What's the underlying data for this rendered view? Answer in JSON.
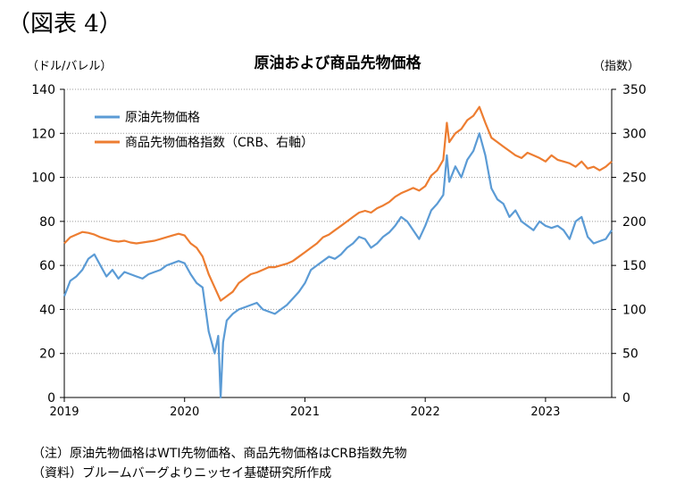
{
  "figure_label": "（図表 4）",
  "notes": [
    "（注）原油先物価格はWTI先物価格、商品先物価格はCRB指数先物",
    "（資料）ブルームバーグよりニッセイ基礎研究所作成"
  ],
  "chart_data": {
    "type": "line",
    "title": "原油および商品先物価格",
    "ylabel_left": "（ドル/バレル）",
    "ylabel_right": "（指数）",
    "ylim_left": [
      0,
      140
    ],
    "ylim_right": [
      0,
      350
    ],
    "yticks_left": [
      0,
      20,
      40,
      60,
      80,
      100,
      120,
      140
    ],
    "yticks_right": [
      0,
      50,
      100,
      150,
      200,
      250,
      300,
      350
    ],
    "xticks": [
      "2019",
      "2020",
      "2021",
      "2022",
      "2023"
    ],
    "xlim": [
      2019.0,
      2023.55
    ],
    "grid": "horizontal dotted",
    "legend_position": "top-left",
    "series": [
      {
        "name": "原油先物価格",
        "axis": "left",
        "color": "#5B9BD5",
        "x": [
          2019.0,
          2019.05,
          2019.1,
          2019.15,
          2019.2,
          2019.25,
          2019.3,
          2019.35,
          2019.4,
          2019.45,
          2019.5,
          2019.55,
          2019.6,
          2019.65,
          2019.7,
          2019.75,
          2019.8,
          2019.85,
          2019.9,
          2019.95,
          2020.0,
          2020.05,
          2020.1,
          2020.15,
          2020.2,
          2020.25,
          2020.28,
          2020.3,
          2020.32,
          2020.35,
          2020.4,
          2020.45,
          2020.5,
          2020.55,
          2020.6,
          2020.65,
          2020.7,
          2020.75,
          2020.8,
          2020.85,
          2020.9,
          2020.95,
          2021.0,
          2021.05,
          2021.1,
          2021.15,
          2021.2,
          2021.25,
          2021.3,
          2021.35,
          2021.4,
          2021.45,
          2021.5,
          2021.55,
          2021.6,
          2021.65,
          2021.7,
          2021.75,
          2021.8,
          2021.85,
          2021.9,
          2021.95,
          2022.0,
          2022.05,
          2022.1,
          2022.15,
          2022.18,
          2022.2,
          2022.25,
          2022.3,
          2022.35,
          2022.4,
          2022.45,
          2022.5,
          2022.55,
          2022.6,
          2022.65,
          2022.7,
          2022.75,
          2022.8,
          2022.85,
          2022.9,
          2022.95,
          2023.0,
          2023.05,
          2023.1,
          2023.15,
          2023.2,
          2023.25,
          2023.3,
          2023.35,
          2023.4,
          2023.45,
          2023.5,
          2023.55
        ],
        "y": [
          46,
          53,
          55,
          58,
          63,
          65,
          60,
          55,
          58,
          54,
          57,
          56,
          55,
          54,
          56,
          57,
          58,
          60,
          61,
          62,
          61,
          56,
          52,
          50,
          30,
          20,
          28,
          0,
          25,
          35,
          38,
          40,
          41,
          42,
          43,
          40,
          39,
          38,
          40,
          42,
          45,
          48,
          52,
          58,
          60,
          62,
          64,
          63,
          65,
          68,
          70,
          73,
          72,
          68,
          70,
          73,
          75,
          78,
          82,
          80,
          76,
          72,
          78,
          85,
          88,
          92,
          110,
          98,
          105,
          100,
          108,
          112,
          120,
          110,
          95,
          90,
          88,
          82,
          85,
          80,
          78,
          76,
          80,
          78,
          77,
          78,
          76,
          72,
          80,
          82,
          73,
          70,
          71,
          72,
          76
        ]
      },
      {
        "name": "商品先物価格指数（CRB、右軸）",
        "axis": "right",
        "color": "#ED7D31",
        "x": [
          2019.0,
          2019.05,
          2019.1,
          2019.15,
          2019.2,
          2019.25,
          2019.3,
          2019.35,
          2019.4,
          2019.45,
          2019.5,
          2019.55,
          2019.6,
          2019.65,
          2019.7,
          2019.75,
          2019.8,
          2019.85,
          2019.9,
          2019.95,
          2020.0,
          2020.05,
          2020.1,
          2020.15,
          2020.2,
          2020.25,
          2020.3,
          2020.35,
          2020.4,
          2020.45,
          2020.5,
          2020.55,
          2020.6,
          2020.65,
          2020.7,
          2020.75,
          2020.8,
          2020.85,
          2020.9,
          2020.95,
          2021.0,
          2021.05,
          2021.1,
          2021.15,
          2021.2,
          2021.25,
          2021.3,
          2021.35,
          2021.4,
          2021.45,
          2021.5,
          2021.55,
          2021.6,
          2021.65,
          2021.7,
          2021.75,
          2021.8,
          2021.85,
          2021.9,
          2021.95,
          2022.0,
          2022.05,
          2022.1,
          2022.15,
          2022.18,
          2022.2,
          2022.25,
          2022.3,
          2022.35,
          2022.4,
          2022.45,
          2022.5,
          2022.55,
          2022.6,
          2022.65,
          2022.7,
          2022.75,
          2022.8,
          2022.85,
          2022.9,
          2022.95,
          2023.0,
          2023.05,
          2023.1,
          2023.15,
          2023.2,
          2023.25,
          2023.3,
          2023.35,
          2023.4,
          2023.45,
          2023.5,
          2023.55
        ],
        "y": [
          175,
          182,
          185,
          188,
          187,
          185,
          182,
          180,
          178,
          177,
          178,
          176,
          175,
          176,
          177,
          178,
          180,
          182,
          184,
          186,
          184,
          175,
          170,
          160,
          140,
          125,
          110,
          115,
          120,
          130,
          135,
          140,
          142,
          145,
          148,
          148,
          150,
          152,
          155,
          160,
          165,
          170,
          175,
          182,
          185,
          190,
          195,
          200,
          205,
          210,
          212,
          210,
          215,
          218,
          222,
          228,
          232,
          235,
          238,
          235,
          240,
          252,
          258,
          270,
          312,
          290,
          300,
          305,
          315,
          320,
          330,
          312,
          295,
          290,
          285,
          280,
          275,
          272,
          278,
          275,
          272,
          268,
          275,
          270,
          268,
          266,
          262,
          268,
          260,
          262,
          258,
          262,
          268
        ]
      }
    ]
  }
}
